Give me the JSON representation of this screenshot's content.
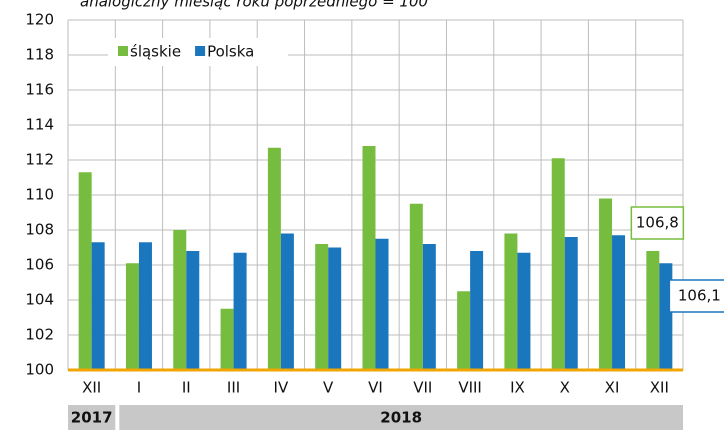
{
  "chart_data": {
    "type": "bar",
    "subtitle": "analogiczny miesiąc roku poprzedniego = 100",
    "categories": [
      "XII",
      "I",
      "II",
      "III",
      "IV",
      "V",
      "VI",
      "VII",
      "VIII",
      "IX",
      "X",
      "XI",
      "XII"
    ],
    "groups": [
      {
        "label": "2017",
        "count": 1
      },
      {
        "label": "2018",
        "count": 12
      }
    ],
    "series": [
      {
        "name": "śląskie",
        "color": "#76bd3f",
        "values": [
          111.3,
          106.1,
          108.0,
          103.5,
          112.7,
          107.2,
          112.8,
          109.5,
          104.5,
          107.8,
          112.1,
          109.8,
          106.8
        ],
        "value_labels": [
          null,
          null,
          null,
          null,
          null,
          null,
          null,
          null,
          null,
          null,
          null,
          null,
          "106,8"
        ]
      },
      {
        "name": "Polska",
        "color": "#1a76bd",
        "values": [
          107.3,
          107.3,
          106.8,
          106.7,
          107.8,
          107.0,
          107.5,
          107.2,
          106.8,
          106.7,
          107.6,
          107.7,
          106.1
        ],
        "value_labels": [
          null,
          null,
          null,
          null,
          null,
          null,
          null,
          null,
          null,
          null,
          null,
          null,
          "106,1"
        ]
      }
    ],
    "ylim": [
      100,
      120
    ],
    "yticks": [
      100,
      102,
      104,
      106,
      108,
      110,
      112,
      114,
      116,
      118,
      120
    ],
    "grid": true,
    "legend": "top-left",
    "baseline_color": "#f0a500"
  }
}
